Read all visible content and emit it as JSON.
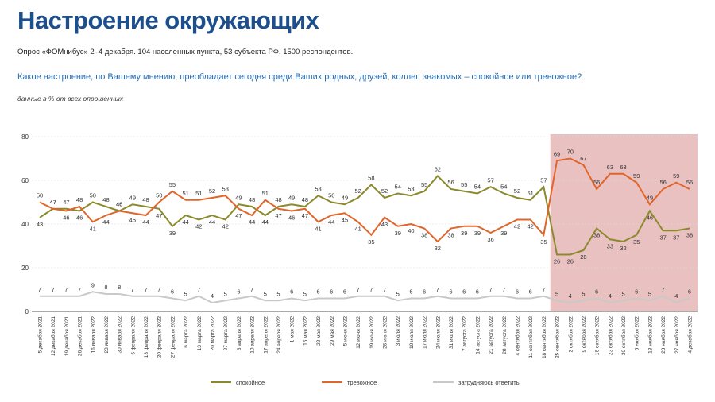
{
  "header": {
    "title": "Настроение окружающих",
    "subtitle": "Опрос «ФОМнибус» 2–4 декабря. 104 населенных пункта, 53 субъекта РФ, 1500 респондентов.",
    "question": "Какое настроение, по Вашему мнению, преобладает сегодня среди Ваших родных, друзей, коллег, знакомых – спокойное или тревожное?",
    "note": "данные в % от всех опрошенных"
  },
  "chart_data": {
    "type": "line",
    "categories": [
      "5 декабря 2021",
      "12 декабря 2021",
      "19 декабря 2021",
      "26 декабря 2021",
      "16 января 2022",
      "23 января 2022",
      "30 января 2022",
      "6 февраля 2022",
      "13 февраля 2022",
      "20 февраля 2022",
      "27 февраля 2022",
      "6 марта 2022",
      "13 марта 2022",
      "20 марта 2022",
      "27 марта 2022",
      "3 апреля 2022",
      "10 апреля 2022",
      "17 апреля 2022",
      "24 апреля 2022",
      "1 мая 2022",
      "15 мая 2022",
      "22 мая 2022",
      "29 мая 2022",
      "5 июня 2022",
      "12 июня 2022",
      "19 июня 2022",
      "26 июня 2022",
      "3 июля 2022",
      "10 июля 2022",
      "17 июля 2022",
      "24 июля 2022",
      "31 июля 2022",
      "7 августа 2022",
      "14 августа 2022",
      "21 августа 2022",
      "28 августа 2022",
      "4 сентября 2022",
      "11 сентября 2022",
      "18 сентября 2022",
      "25 сентября 2022",
      "2 октября 2022",
      "9 октября 2022",
      "16 октября 2022",
      "23 октября 2022",
      "30 октября 2022",
      "6 ноября 2022",
      "13 ноября 2022",
      "20 ноября 2022",
      "27 ноября 2022",
      "4 декабря 2022"
    ],
    "series": [
      {
        "name": "спокойное",
        "color": "#8a8a2c",
        "values": [
          43,
          47,
          47,
          46,
          50,
          48,
          46,
          49,
          48,
          47,
          39,
          44,
          42,
          44,
          42,
          49,
          48,
          44,
          48,
          49,
          48,
          53,
          50,
          49,
          52,
          58,
          52,
          54,
          53,
          55,
          62,
          56,
          55,
          54,
          57,
          54,
          52,
          51,
          57,
          26,
          26,
          28,
          38,
          33,
          32,
          35,
          46,
          37,
          37,
          38
        ]
      },
      {
        "name": "тревожное",
        "color": "#e0652a",
        "values": [
          50,
          47,
          46,
          48,
          41,
          44,
          46,
          45,
          44,
          50,
          55,
          51,
          51,
          52,
          53,
          47,
          44,
          51,
          47,
          46,
          47,
          41,
          44,
          45,
          41,
          35,
          43,
          39,
          40,
          38,
          32,
          38,
          39,
          39,
          36,
          39,
          42,
          42,
          35,
          69,
          70,
          67,
          56,
          63,
          63,
          59,
          49,
          56,
          59,
          56
        ]
      },
      {
        "name": "затрудняюсь ответить",
        "color": "#c9c9c9",
        "values": [
          7,
          7,
          7,
          7,
          9,
          8,
          8,
          7,
          7,
          7,
          6,
          5,
          7,
          4,
          5,
          6,
          7,
          5,
          5,
          6,
          5,
          6,
          6,
          6,
          7,
          7,
          7,
          5,
          6,
          6,
          7,
          6,
          6,
          6,
          7,
          7,
          6,
          6,
          7,
          5,
          4,
          5,
          6,
          4,
          5,
          6,
          5,
          7,
          4,
          6
        ]
      }
    ],
    "ylim": [
      0,
      80
    ],
    "yticks": [
      0,
      20,
      40,
      60,
      80
    ],
    "grid": true,
    "highlight_start": "25 сентября 2022",
    "highlight_color": "#e9c1c1"
  }
}
